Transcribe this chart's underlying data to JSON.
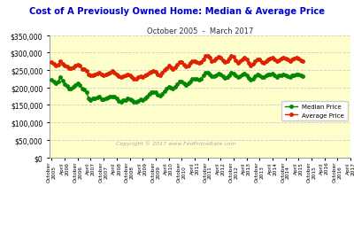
{
  "title": "Cost of A Previously Owned Home: Median & Average Price",
  "subtitle": "October 2005  -  March 2017",
  "title_color": "#0000cc",
  "subtitle_color": "#333333",
  "background_color": "#ffffcc",
  "plot_bg_color": "#ffffcc",
  "outer_bg_color": "#ffffff",
  "copyright_text": "Copyright © 2017 www.FedPrimeRate.com",
  "copyright_color": "#aaaaaa",
  "ylim": [
    0,
    350000
  ],
  "yticks": [
    0,
    50000,
    100000,
    150000,
    200000,
    250000,
    300000,
    350000
  ],
  "median_color": "#008800",
  "average_color": "#dd2200",
  "median_label": "Median Price",
  "average_label": "Average Price",
  "marker_size": 2.5,
  "line_width": 1.0,
  "grid_color": "#cccccc",
  "xtick_labels": [
    "October\n2005",
    "April\n2006",
    "October\n2006",
    "April\n2007",
    "October\n2007",
    "April\n2008",
    "October\n2008",
    "April\n2009",
    "October\n2009",
    "April\n2010",
    "October\n2010",
    "April\n2011",
    "October\n2011",
    "April\n2012",
    "October\n2012",
    "April\n2013",
    "October\n2013",
    "April\n2014",
    "October\n2014",
    "April\n2015",
    "October\n2015",
    "April\n2016",
    "October\n2016",
    "April\n2017"
  ],
  "xtick_positions_months": [
    0,
    6,
    12,
    18,
    24,
    30,
    36,
    42,
    48,
    54,
    60,
    66,
    72,
    78,
    84,
    90,
    96,
    102,
    108,
    114,
    120,
    126,
    132,
    138
  ],
  "median_values": [
    222000,
    217000,
    212000,
    218000,
    230000,
    219000,
    210000,
    204000,
    198000,
    196000,
    202000,
    208000,
    212000,
    207000,
    198000,
    194000,
    188000,
    170000,
    165000,
    170000,
    169000,
    171000,
    174000,
    166000,
    166000,
    168000,
    172000,
    174000,
    175000,
    174000,
    168000,
    162000,
    160000,
    163000,
    165000,
    168000,
    167000,
    163000,
    158000,
    158000,
    162000,
    166000,
    163000,
    170000,
    174000,
    183000,
    186000,
    187000,
    186000,
    178000,
    176000,
    183000,
    190000,
    196000,
    202000,
    200000,
    196000,
    203000,
    210000,
    218000,
    218000,
    213000,
    208000,
    211000,
    218000,
    224000,
    226000,
    225000,
    222000,
    226000,
    234000,
    243000,
    244000,
    238000,
    232000,
    232000,
    236000,
    240000,
    238000,
    232000,
    228000,
    230000,
    236000,
    242000,
    240000,
    234000,
    230000,
    233000,
    237000,
    240000,
    236000,
    228000,
    222000,
    226000,
    233000,
    238000,
    235000,
    230000,
    229000,
    234000,
    237000,
    237000,
    239000,
    234000,
    230000,
    234000,
    236000,
    237000,
    235000,
    232000,
    230000,
    234000,
    236000,
    237000,
    238000,
    234000,
    233000
  ],
  "average_values": [
    272000,
    268000,
    262000,
    266000,
    275000,
    268000,
    264000,
    260000,
    256000,
    255000,
    258000,
    262000,
    266000,
    262000,
    254000,
    253000,
    248000,
    238000,
    234000,
    236000,
    237000,
    240000,
    242000,
    237000,
    236000,
    238000,
    241000,
    244000,
    247000,
    244000,
    237000,
    232000,
    230000,
    232000,
    234000,
    237000,
    236000,
    231000,
    226000,
    226000,
    230000,
    233000,
    230000,
    234000,
    237000,
    243000,
    246000,
    248000,
    246000,
    238000,
    236000,
    243000,
    250000,
    256000,
    262000,
    259000,
    254000,
    259000,
    265000,
    274000,
    273000,
    266000,
    261000,
    264000,
    270000,
    275000,
    276000,
    274000,
    271000,
    274000,
    282000,
    290000,
    292000,
    285000,
    276000,
    278000,
    283000,
    288000,
    286000,
    278000,
    273000,
    276000,
    283000,
    290000,
    288000,
    278000,
    271000,
    275000,
    281000,
    286000,
    280000,
    270000,
    263000,
    268000,
    276000,
    282000,
    280000,
    273000,
    271000,
    277000,
    282000,
    284000,
    285000,
    280000,
    275000,
    279000,
    284000,
    286000,
    284000,
    280000,
    277000,
    280000,
    284000,
    286000,
    284000,
    279000,
    277000
  ]
}
